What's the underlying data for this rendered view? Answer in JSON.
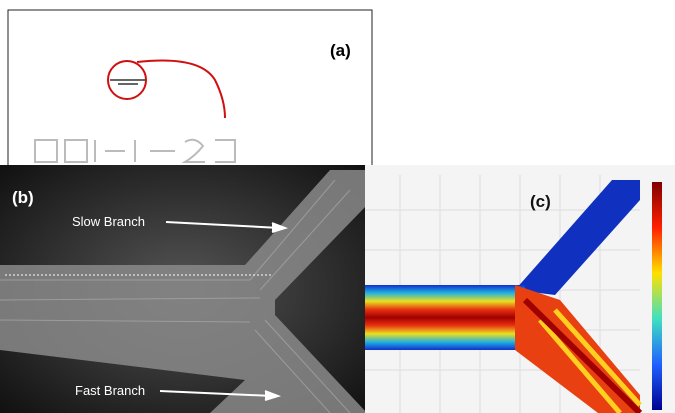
{
  "panels": [
    {
      "label": "(a)"
    },
    {
      "label": "(b)",
      "annotations": [
        "Slow Branch",
        "Fast Branch"
      ]
    },
    {
      "label": "(c)"
    }
  ]
}
